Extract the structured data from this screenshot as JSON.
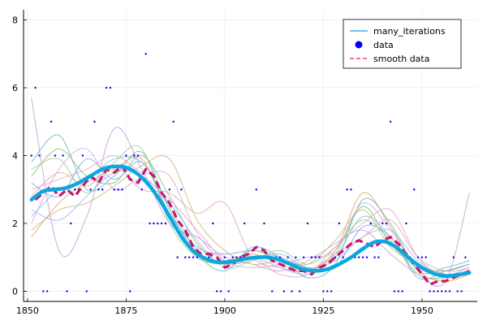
{
  "chart_data": {
    "type": "line",
    "title": "",
    "xlabel": "",
    "ylabel": "",
    "xlim": [
      1849,
      1964
    ],
    "ylim": [
      -0.3,
      8.3
    ],
    "xticks": [
      1850,
      1875,
      1900,
      1925,
      1950
    ],
    "yticks": [
      0,
      2,
      4,
      6,
      8
    ],
    "grid": true,
    "legend_position": "top-right",
    "legend": [
      {
        "label": "many_iterations",
        "style": "line",
        "color": "#3DB3E3"
      },
      {
        "label": "data",
        "style": "marker",
        "color": "#0000FF"
      },
      {
        "label": "smooth data",
        "style": "dashed",
        "color": "#E0457B"
      }
    ],
    "data_series": {
      "name": "data",
      "color": "#0000FF",
      "x": [
        1851,
        1852,
        1853,
        1854,
        1855,
        1856,
        1857,
        1858,
        1859,
        1860,
        1861,
        1862,
        1863,
        1864,
        1865,
        1866,
        1867,
        1868,
        1869,
        1870,
        1871,
        1872,
        1873,
        1874,
        1875,
        1876,
        1877,
        1878,
        1879,
        1880,
        1881,
        1882,
        1883,
        1884,
        1885,
        1886,
        1887,
        1888,
        1889,
        1890,
        1891,
        1892,
        1893,
        1894,
        1895,
        1896,
        1897,
        1898,
        1899,
        1900,
        1901,
        1902,
        1903,
        1904,
        1905,
        1906,
        1907,
        1908,
        1909,
        1910,
        1911,
        1912,
        1913,
        1914,
        1915,
        1916,
        1917,
        1918,
        1919,
        1920,
        1921,
        1922,
        1923,
        1924,
        1925,
        1926,
        1927,
        1928,
        1929,
        1930,
        1931,
        1932,
        1933,
        1934,
        1935,
        1936,
        1937,
        1938,
        1939,
        1940,
        1941,
        1942,
        1943,
        1944,
        1945,
        1946,
        1947,
        1948,
        1949,
        1950,
        1951,
        1952,
        1953,
        1954,
        1955,
        1956,
        1957,
        1958,
        1959,
        1960,
        1961
      ],
      "y": [
        4,
        6,
        4,
        0,
        0,
        5,
        4,
        3,
        4,
        0,
        2,
        3,
        3,
        4,
        0,
        3,
        5,
        3,
        3,
        6,
        6,
        3,
        3,
        3,
        4,
        0,
        4,
        4,
        3,
        7,
        2,
        2,
        2,
        2,
        2,
        3,
        5,
        1,
        3,
        1,
        1,
        1,
        1,
        1,
        1,
        1,
        2,
        0,
        0,
        1,
        0,
        1,
        1,
        1,
        2,
        1,
        1,
        3,
        1,
        2,
        1,
        0,
        1,
        1,
        0,
        1,
        0,
        1,
        0,
        1,
        2,
        1,
        1,
        1,
        0,
        0,
        0,
        1,
        2,
        1,
        3,
        3,
        1,
        1,
        1,
        1,
        2,
        1,
        1,
        2,
        2,
        5,
        0,
        0,
        0,
        2,
        1,
        3,
        1,
        1,
        1,
        0,
        0,
        0,
        0,
        0,
        0,
        1,
        0,
        0,
        1
      ]
    },
    "smooth_series": {
      "name": "smooth data",
      "color": "#C8176F",
      "x": [
        1852,
        1854,
        1856,
        1858,
        1860,
        1862,
        1864,
        1866,
        1868,
        1870,
        1872,
        1874,
        1876,
        1878,
        1880,
        1882,
        1884,
        1886,
        1888,
        1890,
        1892,
        1894,
        1896,
        1898,
        1900,
        1902,
        1904,
        1906,
        1908,
        1910,
        1912,
        1914,
        1916,
        1918,
        1920,
        1922,
        1924,
        1926,
        1928,
        1930,
        1932,
        1934,
        1936,
        1938,
        1940,
        1942,
        1944,
        1946,
        1948,
        1950,
        1952,
        1954,
        1956,
        1958,
        1960,
        1962
      ],
      "y": [
        2.7,
        2.9,
        3.1,
        2.8,
        3.0,
        2.8,
        3.1,
        3.4,
        3.2,
        3.6,
        3.5,
        3.7,
        3.3,
        3.2,
        3.6,
        3.4,
        2.9,
        2.6,
        2.1,
        1.8,
        1.3,
        1.1,
        1.1,
        1.0,
        0.7,
        0.8,
        1.0,
        1.1,
        1.3,
        1.2,
        0.9,
        0.8,
        0.7,
        0.6,
        0.6,
        0.5,
        0.7,
        0.8,
        1.0,
        1.2,
        1.4,
        1.5,
        1.4,
        1.3,
        1.5,
        1.6,
        1.4,
        1.1,
        0.8,
        0.5,
        0.2,
        0.3,
        0.3,
        0.4,
        0.5,
        0.6
      ]
    },
    "mean_series": {
      "name": "many_iterations",
      "color": "#0BA7E0",
      "x": [
        1851,
        1854,
        1857,
        1860,
        1863,
        1866,
        1869,
        1872,
        1875,
        1878,
        1881,
        1884,
        1887,
        1890,
        1893,
        1896,
        1899,
        1902,
        1905,
        1908,
        1911,
        1914,
        1917,
        1920,
        1923,
        1926,
        1929,
        1932,
        1935,
        1938,
        1941,
        1944,
        1947,
        1950,
        1953,
        1956,
        1959,
        1962
      ],
      "y": [
        2.7,
        2.95,
        3.0,
        3.05,
        3.2,
        3.4,
        3.6,
        3.68,
        3.65,
        3.45,
        3.1,
        2.6,
        2.0,
        1.45,
        1.1,
        0.92,
        0.85,
        0.88,
        0.95,
        1.0,
        1.0,
        0.92,
        0.78,
        0.65,
        0.6,
        0.65,
        0.8,
        1.0,
        1.25,
        1.45,
        1.45,
        1.25,
        0.95,
        0.7,
        0.52,
        0.45,
        0.48,
        0.55
      ]
    },
    "iteration_series": [
      {
        "color": "#7CC3E8",
        "x": [
          1851,
          1858,
          1865,
          1872,
          1879,
          1886,
          1893,
          1900,
          1907,
          1914,
          1921,
          1928,
          1935,
          1942,
          1949,
          1956,
          1962
        ],
        "y": [
          2.2,
          3.0,
          3.3,
          3.9,
          3.8,
          2.5,
          1.2,
          0.8,
          1.0,
          0.7,
          0.5,
          1.0,
          2.2,
          1.6,
          0.5,
          0.4,
          0.6
        ]
      },
      {
        "color": "#E5A45A",
        "x": [
          1851,
          1858,
          1865,
          1872,
          1879,
          1886,
          1893,
          1900,
          1907,
          1914,
          1921,
          1928,
          1935,
          1942,
          1949,
          1956,
          1962
        ],
        "y": [
          1.6,
          2.6,
          3.2,
          3.6,
          3.9,
          2.2,
          1.0,
          0.9,
          1.1,
          0.8,
          0.6,
          1.2,
          2.9,
          1.9,
          0.6,
          0.3,
          0.5
        ]
      },
      {
        "color": "#7BC27A",
        "x": [
          1851,
          1858,
          1865,
          1872,
          1879,
          1886,
          1893,
          1900,
          1907,
          1914,
          1921,
          1928,
          1935,
          1942,
          1949,
          1956,
          1962
        ],
        "y": [
          3.4,
          4.2,
          3.4,
          3.2,
          4.0,
          2.8,
          1.4,
          0.8,
          1.2,
          0.9,
          0.6,
          1.1,
          2.5,
          1.4,
          0.7,
          0.6,
          0.8
        ]
      },
      {
        "color": "#C79BDB",
        "x": [
          1851,
          1858,
          1865,
          1872,
          1879,
          1886,
          1893,
          1900,
          1907,
          1914,
          1921,
          1928,
          1935,
          1942,
          1949,
          1956,
          1962
        ],
        "y": [
          5.7,
          1.2,
          2.2,
          4.8,
          3.6,
          2.0,
          1.6,
          1.0,
          0.8,
          0.6,
          0.9,
          1.4,
          1.8,
          1.1,
          0.5,
          0.3,
          2.9
        ]
      },
      {
        "color": "#9AB7E8",
        "x": [
          1851,
          1858,
          1865,
          1872,
          1879,
          1886,
          1893,
          1900,
          1907,
          1914,
          1921,
          1928,
          1935,
          1942,
          1949,
          1956,
          1962
        ],
        "y": [
          2.4,
          2.1,
          2.8,
          3.5,
          3.4,
          2.6,
          1.5,
          0.7,
          0.9,
          1.1,
          0.7,
          0.9,
          1.6,
          1.8,
          0.9,
          0.5,
          0.7
        ]
      },
      {
        "color": "#E7A3C6",
        "x": [
          1851,
          1858,
          1865,
          1872,
          1879,
          1886,
          1893,
          1900,
          1907,
          1914,
          1921,
          1928,
          1935,
          1942,
          1949,
          1956,
          1962
        ],
        "y": [
          3.0,
          3.3,
          3.6,
          4.0,
          3.5,
          3.4,
          1.7,
          0.9,
          1.0,
          0.5,
          0.5,
          1.3,
          2.0,
          2.4,
          1.0,
          0.4,
          0.6
        ]
      },
      {
        "color": "#66BBB5",
        "x": [
          1851,
          1858,
          1865,
          1872,
          1879,
          1886,
          1893,
          1900,
          1907,
          1914,
          1921,
          1928,
          1935,
          1942,
          1949,
          1956,
          1962
        ],
        "y": [
          3.8,
          4.6,
          3.0,
          3.4,
          4.1,
          2.4,
          1.1,
          0.6,
          1.3,
          1.0,
          0.4,
          0.8,
          2.7,
          2.0,
          0.6,
          0.7,
          0.9
        ]
      },
      {
        "color": "#C6B87A",
        "x": [
          1851,
          1858,
          1865,
          1872,
          1879,
          1886,
          1893,
          1900,
          1907,
          1914,
          1921,
          1928,
          1935,
          1942,
          1949,
          1956,
          1962
        ],
        "y": [
          1.8,
          2.4,
          2.6,
          3.1,
          3.7,
          3.9,
          2.1,
          1.2,
          0.8,
          0.9,
          0.8,
          1.5,
          2.4,
          1.3,
          0.8,
          0.5,
          0.5
        ]
      },
      {
        "color": "#E2A3B6",
        "x": [
          1851,
          1858,
          1865,
          1872,
          1879,
          1886,
          1893,
          1900,
          1907,
          1914,
          1921,
          1928,
          1935,
          1942,
          1949,
          1956,
          1962
        ],
        "y": [
          2.8,
          3.5,
          3.1,
          3.7,
          3.0,
          2.9,
          2.3,
          2.6,
          1.0,
          0.7,
          0.6,
          1.1,
          1.6,
          2.1,
          1.0,
          0.6,
          0.7
        ]
      },
      {
        "color": "#7DA8E3",
        "x": [
          1851,
          1858,
          1865,
          1872,
          1879,
          1886,
          1893,
          1900,
          1907,
          1914,
          1921,
          1928,
          1935,
          1942,
          1949,
          1956,
          1962
        ],
        "y": [
          3.2,
          2.8,
          3.9,
          3.3,
          3.8,
          2.3,
          1.3,
          1.1,
          1.2,
          1.0,
          0.7,
          0.7,
          1.9,
          1.6,
          0.4,
          0.6,
          0.8
        ]
      },
      {
        "color": "#9CCB8A",
        "x": [
          1851,
          1858,
          1865,
          1872,
          1879,
          1886,
          1893,
          1900,
          1907,
          1914,
          1921,
          1928,
          1935,
          1942,
          1949,
          1956,
          1962
        ],
        "y": [
          3.6,
          3.9,
          2.9,
          3.8,
          4.2,
          2.0,
          1.0,
          0.8,
          0.9,
          1.2,
          0.8,
          1.3,
          2.1,
          1.5,
          0.5,
          0.4,
          0.5
        ]
      },
      {
        "color": "#D8A5E2",
        "x": [
          1851,
          1858,
          1865,
          1872,
          1879,
          1886,
          1893,
          1900,
          1907,
          1914,
          1921,
          1928,
          1935,
          1942,
          1949,
          1956,
          1962
        ],
        "y": [
          2.0,
          3.6,
          4.2,
          3.0,
          3.3,
          2.7,
          1.8,
          0.9,
          0.7,
          0.8,
          1.0,
          1.2,
          2.6,
          1.8,
          0.7,
          0.5,
          0.6
        ]
      }
    ]
  }
}
